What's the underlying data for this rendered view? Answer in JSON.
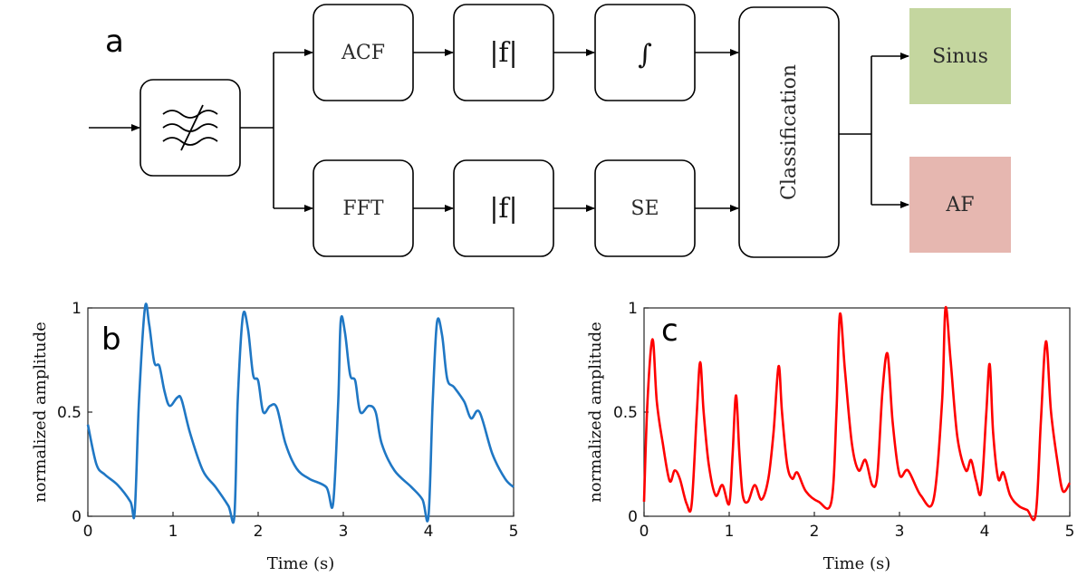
{
  "diagram": {
    "panel_label": "a",
    "blocks": {
      "filter": {
        "label": "",
        "icon": "lowpass-filter-icon"
      },
      "acf": {
        "label": "ACF"
      },
      "abs_top": {
        "label": "|f|"
      },
      "integral": {
        "label": "∫"
      },
      "fft": {
        "label": "FFT"
      },
      "abs_bottom": {
        "label": "|f|"
      },
      "se": {
        "label": "SE"
      },
      "classification": {
        "label": "Classification"
      },
      "sinus": {
        "label": "Sinus",
        "color": "#c4d69f"
      },
      "af": {
        "label": "AF",
        "color": "#e6b7b0"
      }
    }
  },
  "chart_data": [
    {
      "panel_label": "b",
      "type": "line",
      "xlabel": "Time (s)",
      "ylabel": "normalized amplitude",
      "xlim": [
        0,
        5
      ],
      "ylim": [
        0,
        1
      ],
      "xticks": [
        "0",
        "1",
        "2",
        "3",
        "4",
        "5"
      ],
      "yticks": [
        "0",
        "0.5",
        "1"
      ],
      "color": "#1f77c4",
      "series": [
        {
          "x": [
            0,
            0.1,
            0.2,
            0.35,
            0.5,
            0.55,
            0.6,
            0.67,
            0.72,
            0.78,
            0.84,
            0.9,
            0.96,
            1.05,
            1.1,
            1.2,
            1.35,
            1.5,
            1.65,
            1.72,
            1.76,
            1.82,
            1.88,
            1.94,
            2.0,
            2.06,
            2.14,
            2.22,
            2.32,
            2.45,
            2.6,
            2.8,
            2.88,
            2.94,
            2.97,
            3.02,
            3.08,
            3.14,
            3.2,
            3.3,
            3.38,
            3.45,
            3.6,
            3.8,
            3.93,
            4.0,
            4.05,
            4.1,
            4.16,
            4.22,
            4.3,
            4.42,
            4.5,
            4.6,
            4.75,
            4.9,
            5.0
          ],
          "y": [
            0.44,
            0.25,
            0.2,
            0.15,
            0.07,
            0.02,
            0.55,
            1.0,
            0.92,
            0.74,
            0.72,
            0.6,
            0.53,
            0.57,
            0.56,
            0.4,
            0.22,
            0.14,
            0.05,
            0.0,
            0.55,
            0.96,
            0.9,
            0.68,
            0.65,
            0.5,
            0.53,
            0.52,
            0.35,
            0.23,
            0.18,
            0.14,
            0.06,
            0.55,
            0.94,
            0.88,
            0.68,
            0.65,
            0.5,
            0.53,
            0.5,
            0.35,
            0.22,
            0.14,
            0.08,
            0.0,
            0.55,
            0.93,
            0.87,
            0.66,
            0.62,
            0.55,
            0.47,
            0.5,
            0.3,
            0.18,
            0.14
          ]
        }
      ]
    },
    {
      "panel_label": "c",
      "type": "line",
      "xlabel": "Time (s)",
      "ylabel": "normalized amplitude",
      "xlim": [
        0,
        5
      ],
      "ylim": [
        0,
        1
      ],
      "xticks": [
        "0",
        "1",
        "2",
        "3",
        "4",
        "5"
      ],
      "yticks": [
        "0",
        "0.5",
        "1"
      ],
      "color": "#ff0000",
      "series": [
        {
          "x": [
            0,
            0.04,
            0.1,
            0.15,
            0.22,
            0.3,
            0.36,
            0.42,
            0.5,
            0.56,
            0.62,
            0.66,
            0.7,
            0.76,
            0.84,
            0.92,
            1.0,
            1.04,
            1.08,
            1.12,
            1.16,
            1.22,
            1.3,
            1.38,
            1.46,
            1.52,
            1.58,
            1.62,
            1.68,
            1.74,
            1.8,
            1.9,
            2.05,
            2.2,
            2.26,
            2.3,
            2.36,
            2.44,
            2.52,
            2.6,
            2.68,
            2.74,
            2.8,
            2.86,
            2.92,
            3.0,
            3.1,
            3.25,
            3.4,
            3.5,
            3.54,
            3.6,
            3.68,
            3.78,
            3.84,
            3.9,
            3.96,
            4.02,
            4.06,
            4.1,
            4.16,
            4.22,
            4.3,
            4.4,
            4.5,
            4.6,
            4.66,
            4.72,
            4.78,
            4.86,
            4.92,
            5.0
          ],
          "y": [
            0.07,
            0.55,
            0.85,
            0.55,
            0.35,
            0.17,
            0.22,
            0.18,
            0.06,
            0.06,
            0.5,
            0.74,
            0.5,
            0.25,
            0.1,
            0.15,
            0.06,
            0.3,
            0.58,
            0.3,
            0.1,
            0.07,
            0.15,
            0.08,
            0.18,
            0.4,
            0.72,
            0.5,
            0.25,
            0.18,
            0.21,
            0.12,
            0.07,
            0.07,
            0.5,
            0.97,
            0.7,
            0.35,
            0.22,
            0.27,
            0.15,
            0.2,
            0.6,
            0.78,
            0.45,
            0.2,
            0.22,
            0.1,
            0.08,
            0.55,
            1.0,
            0.75,
            0.38,
            0.22,
            0.27,
            0.17,
            0.12,
            0.5,
            0.73,
            0.4,
            0.18,
            0.21,
            0.1,
            0.05,
            0.03,
            0.01,
            0.45,
            0.84,
            0.5,
            0.25,
            0.12,
            0.16
          ]
        }
      ]
    }
  ]
}
